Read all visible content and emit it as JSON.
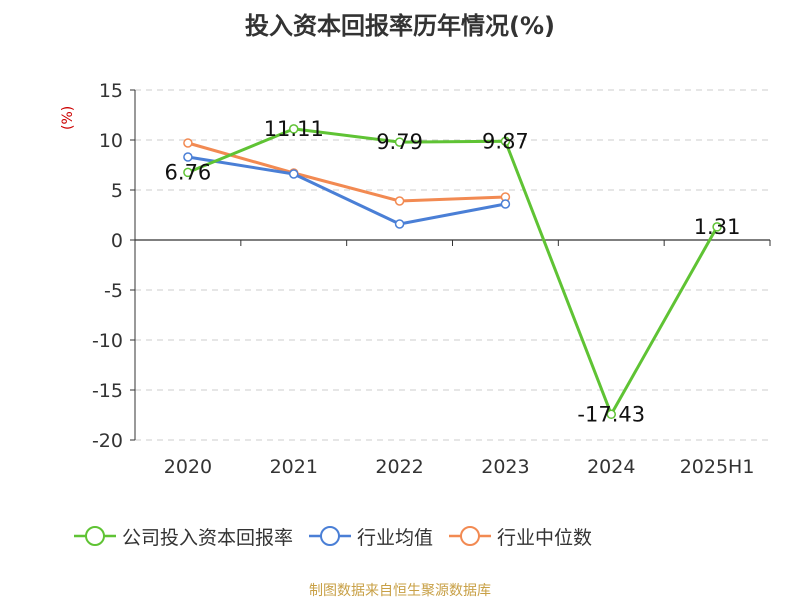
{
  "page_title": "投入资本回报率历年情况(%)",
  "source_note": "制图数据来自恒生聚源数据库",
  "chart_data": {
    "type": "line",
    "title": "投入资本回报率历年情况(%)",
    "ylabel": "(%)",
    "xlabel": "",
    "categories": [
      "2020",
      "2021",
      "2022",
      "2023",
      "2024",
      "2025H1"
    ],
    "ylim": [
      -20,
      15
    ],
    "yticks": [
      15,
      10,
      5,
      0,
      -5,
      -10,
      -15,
      -20
    ],
    "grid": true,
    "legend_position": "bottom",
    "series": [
      {
        "name": "公司投入资本回报率",
        "color": "#5fc334",
        "values": [
          6.76,
          11.11,
          9.79,
          9.87,
          -17.43,
          1.31
        ],
        "data_labels": [
          "6.76",
          "11.11",
          "9.79",
          "9.87",
          "-17.43",
          "1.31"
        ]
      },
      {
        "name": "行业均值",
        "color": "#4a7fd6",
        "values": [
          8.3,
          6.6,
          1.6,
          3.6,
          null,
          null
        ]
      },
      {
        "name": "行业中位数",
        "color": "#f28a52",
        "values": [
          9.7,
          6.7,
          3.9,
          4.3,
          null,
          null
        ]
      }
    ]
  }
}
